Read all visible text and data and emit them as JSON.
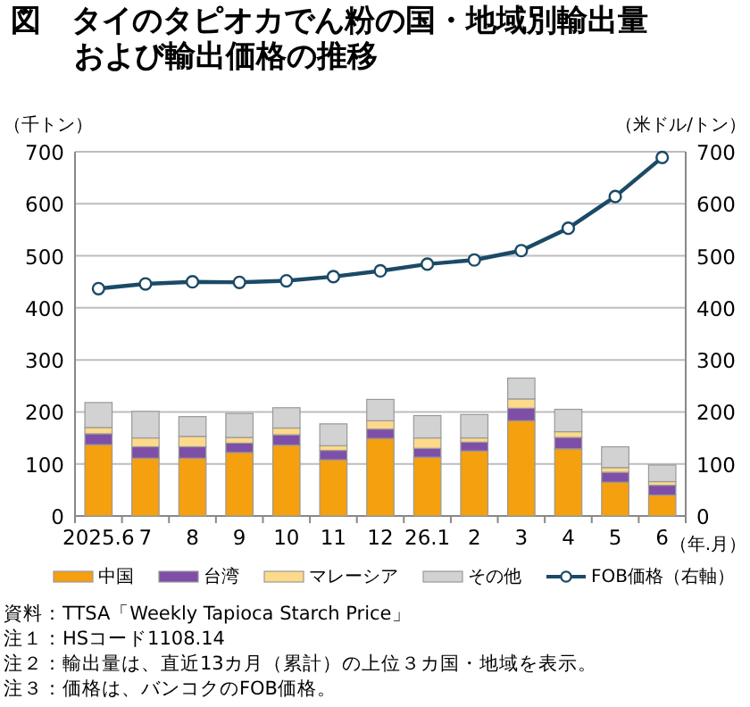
{
  "chart_data": {
    "type": "bar",
    "stacked": true,
    "title": "図　タイのタピオカでん粉の国・地域別輸出量および輸出価格の推移",
    "ylabel": "（千トン）",
    "y2label": "（米ドル/トン）",
    "xlabel": "（年.月）",
    "categories": [
      "2025.6",
      "7",
      "8",
      "9",
      "10",
      "11",
      "12",
      "26.1",
      "2",
      "3",
      "4",
      "5",
      "6"
    ],
    "series": [
      {
        "name": "中国",
        "color": "#f5a00f",
        "values": [
          137,
          111,
          111,
          122,
          136,
          108,
          149,
          113,
          125,
          183,
          129,
          65,
          40
        ]
      },
      {
        "name": "台湾",
        "color": "#7e4fa8",
        "values": [
          21,
          22,
          22,
          18,
          20,
          18,
          18,
          17,
          17,
          24,
          22,
          19,
          19
        ]
      },
      {
        "name": "マレーシア",
        "color": "#fdd98b",
        "values": [
          12,
          17,
          20,
          11,
          13,
          9,
          16,
          20,
          8,
          18,
          11,
          9,
          7
        ]
      },
      {
        "name": "その他",
        "color": "#d2d2d2",
        "values": [
          48,
          51,
          38,
          46,
          39,
          42,
          41,
          43,
          45,
          40,
          43,
          40,
          32
        ]
      },
      {
        "name": "FOB価格（右軸）",
        "type": "line",
        "axis": "y2",
        "marker": "circle",
        "color": "#1a4a66",
        "values": [
          437,
          446,
          450,
          449,
          452,
          460,
          471,
          484,
          492,
          510,
          553,
          614,
          689
        ]
      }
    ],
    "ylim": [
      0,
      700
    ],
    "yticks": [
      0,
      100,
      200,
      300,
      400,
      500,
      600,
      700
    ],
    "y2lim": [
      0,
      700
    ],
    "y2ticks": [
      0,
      100,
      200,
      300,
      400,
      500,
      600,
      700
    ],
    "grid": "y",
    "legend": "bottom",
    "annotations": [
      "資料：TTSA「Weekly Tapioca Starch Price」",
      "注１：HSコード1108.14",
      "注２：輸出量は、直近13カ月（累計）の上位３カ国・地域を表示。",
      "注３：価格は、バンコクのFOB価格。"
    ]
  }
}
